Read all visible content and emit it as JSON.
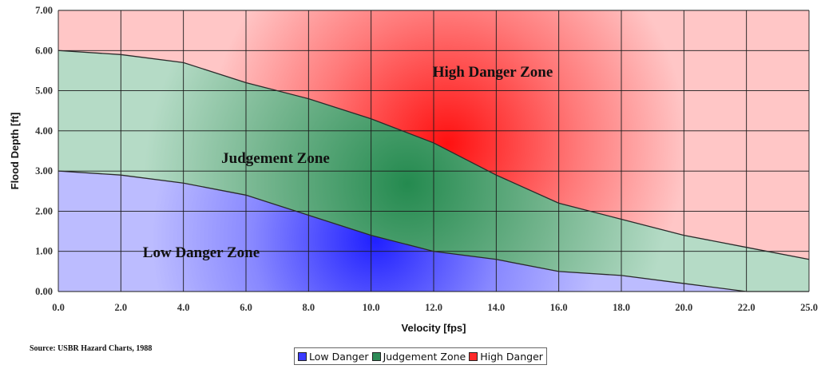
{
  "chart_data": {
    "type": "area",
    "xlabel": "Velocity [fps]",
    "ylabel": "Flood Depth [ft]",
    "x": [
      0,
      2,
      4,
      6,
      8,
      10,
      12,
      14,
      16,
      18,
      20,
      22,
      25
    ],
    "x_tick_labels": [
      "0.0",
      "2.0",
      "4.0",
      "6.0",
      "8.0",
      "10.0",
      "12.0",
      "14.0",
      "16.0",
      "18.0",
      "20.0",
      "22.0",
      "25.0"
    ],
    "y_tick_labels": [
      "0.00",
      "1.00",
      "2.00",
      "3.00",
      "4.00",
      "5.00",
      "6.00",
      "7.00"
    ],
    "ylim": [
      0,
      7
    ],
    "grid": true,
    "series": [
      {
        "name": "Low Danger",
        "color": "#3b3bff",
        "upper": [
          3.0,
          2.9,
          2.7,
          2.4,
          1.9,
          1.4,
          1.0,
          0.8,
          0.5,
          0.4,
          0.2,
          0.0,
          0.0
        ]
      },
      {
        "name": "Judgement Zone",
        "color": "#2e8b57",
        "upper": [
          6.0,
          5.9,
          5.7,
          5.2,
          4.8,
          4.3,
          3.7,
          2.9,
          2.2,
          1.8,
          1.4,
          1.1,
          0.8
        ]
      },
      {
        "name": "High Danger",
        "color": "#ff2a2a",
        "upper": [
          7.0,
          7.0,
          7.0,
          7.0,
          7.0,
          7.0,
          7.0,
          7.0,
          7.0,
          7.0,
          7.0,
          7.0,
          7.0
        ]
      }
    ],
    "annotations": [
      "High Danger Zone",
      "Judgement Zone",
      "Low Danger Zone"
    ],
    "legend_position": "bottom",
    "source_note": "Source: USBR Hazard Charts, 1988"
  }
}
